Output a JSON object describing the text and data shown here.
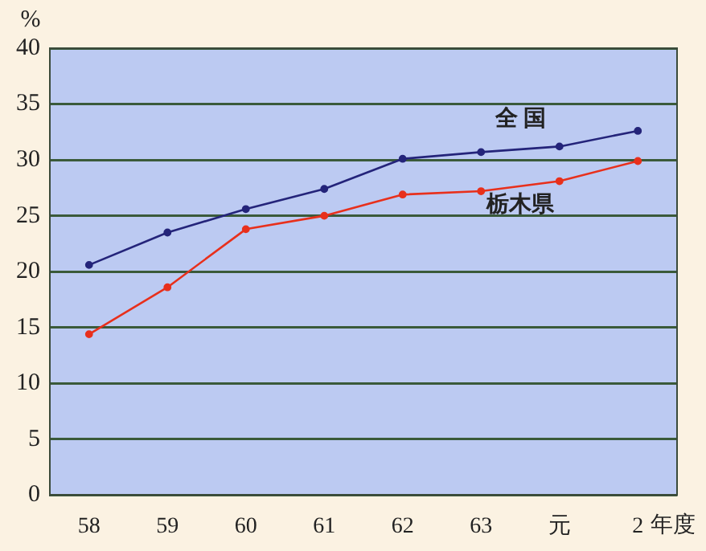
{
  "chart_data": {
    "type": "line",
    "ylabel": "%",
    "xlabel": "年度",
    "categories": [
      "58",
      "59",
      "60",
      "61",
      "62",
      "63",
      "元",
      "2"
    ],
    "series": [
      {
        "name": "全 国",
        "color": "#24247a",
        "values": [
          20.6,
          23.5,
          25.6,
          27.4,
          30.1,
          30.7,
          31.2,
          32.6
        ]
      },
      {
        "name": "栃木県",
        "color": "#e8301c",
        "values": [
          14.4,
          18.6,
          23.8,
          25.0,
          26.9,
          27.2,
          28.1,
          29.9
        ]
      }
    ],
    "ylim": [
      0,
      40
    ],
    "yticks": [
      0,
      5,
      10,
      15,
      20,
      25,
      30,
      35,
      40
    ],
    "grid": "y",
    "legend": false,
    "marker": "circle",
    "line_style": "solid"
  }
}
